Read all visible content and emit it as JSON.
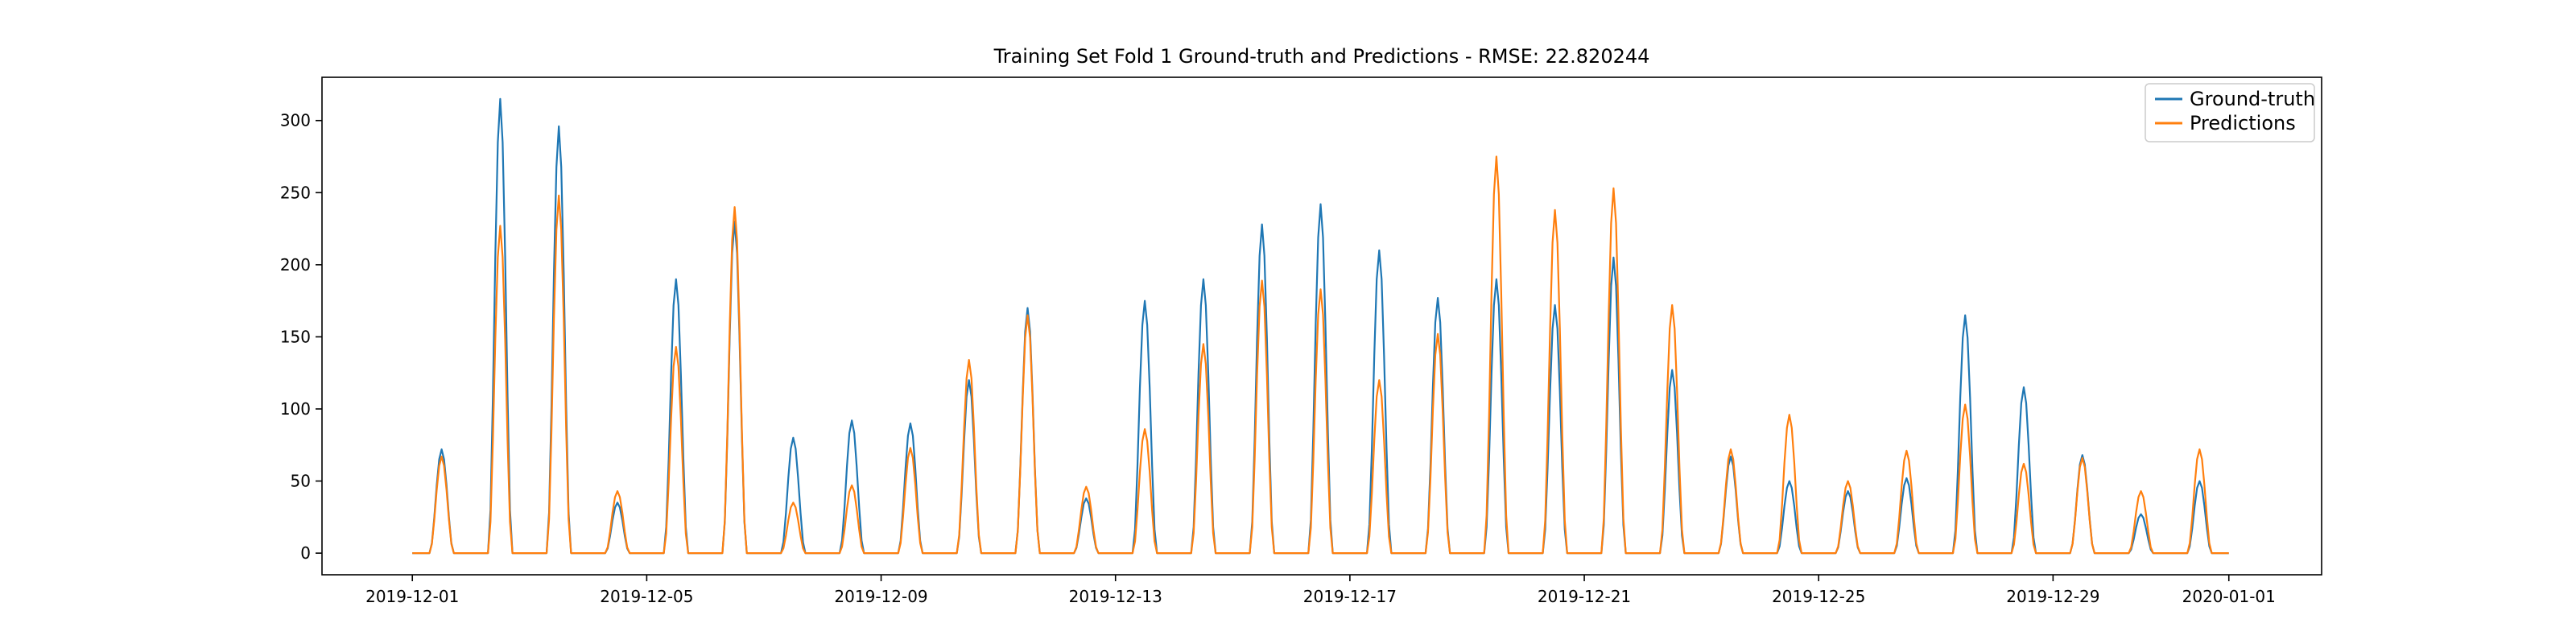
{
  "chart_data": {
    "type": "line",
    "title": "Training Set Fold 1 Ground-truth and Predictions - RMSE: 22.820244",
    "xlabel": "",
    "ylabel": "",
    "x_range": [
      "2019-11-29T11:00",
      "2020-01-02T14:00"
    ],
    "ylim": [
      -15,
      330
    ],
    "x_ticks": [
      "2019-12-01",
      "2019-12-05",
      "2019-12-09",
      "2019-12-13",
      "2019-12-17",
      "2019-12-21",
      "2019-12-25",
      "2019-12-29",
      "2020-01-01"
    ],
    "y_ticks": [
      0,
      50,
      100,
      150,
      200,
      250,
      300
    ],
    "y_tick_labels": [
      "0",
      "50",
      "100",
      "150",
      "200",
      "250",
      "300"
    ],
    "grid": false,
    "legend_position": "top-right",
    "start_date": "2019-12-01",
    "daily_peak_hour": 12,
    "series": [
      {
        "name": "Ground-truth",
        "color": "#1f77b4",
        "daily_peaks": [
          72,
          315,
          296,
          35,
          190,
          230,
          80,
          92,
          90,
          120,
          170,
          38,
          175,
          190,
          228,
          242,
          210,
          177,
          190,
          172,
          205,
          127,
          67,
          50,
          43,
          52,
          165,
          115,
          68,
          27,
          50
        ]
      },
      {
        "name": "Predictions",
        "color": "#ff7f0e",
        "daily_peaks": [
          67,
          227,
          248,
          43,
          143,
          240,
          35,
          47,
          73,
          134,
          165,
          46,
          86,
          145,
          189,
          183,
          120,
          152,
          275,
          238,
          253,
          172,
          72,
          96,
          50,
          71,
          103,
          62,
          66,
          43,
          72
        ]
      }
    ]
  }
}
